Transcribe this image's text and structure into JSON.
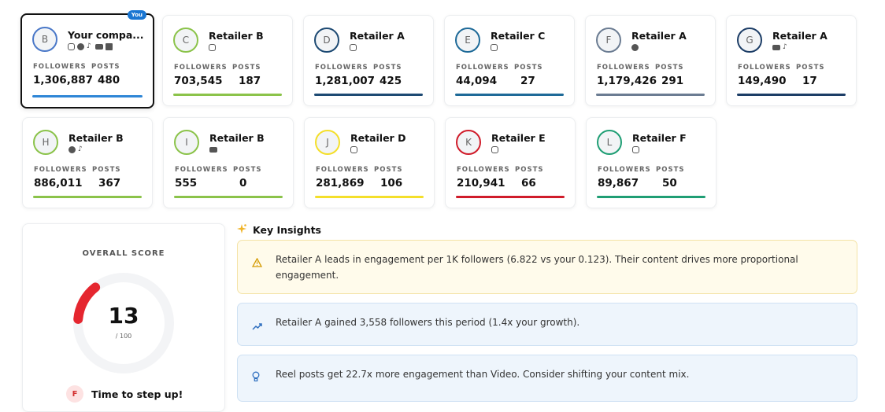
{
  "stats_labels": {
    "followers": "FOLLOWERS",
    "posts": "POSTS"
  },
  "you_badge": "You",
  "competitors": [
    {
      "initial": "B",
      "name": "Your compa...",
      "platforms": [
        "instagram",
        "facebook",
        "tiktok",
        "youtube",
        "linkedin"
      ],
      "followers": "1,306,887",
      "posts": "480",
      "color": "#2f86d6",
      "avatar_color": "#4a78c8",
      "is_you": true
    },
    {
      "initial": "C",
      "name": "Retailer B",
      "platforms": [
        "instagram"
      ],
      "followers": "703,545",
      "posts": "187",
      "color": "#8bc34a",
      "avatar_color": "#8bc34a"
    },
    {
      "initial": "D",
      "name": "Retailer A",
      "platforms": [
        "instagram"
      ],
      "followers": "1,281,007",
      "posts": "425",
      "color": "#1d4a73",
      "avatar_color": "#1d4a73"
    },
    {
      "initial": "E",
      "name": "Retailer C",
      "platforms": [
        "instagram"
      ],
      "followers": "44,094",
      "posts": "27",
      "color": "#1e6a98",
      "avatar_color": "#1e6a98"
    },
    {
      "initial": "F",
      "name": "Retailer A",
      "platforms": [
        "facebook"
      ],
      "followers": "1,179,426",
      "posts": "291",
      "color": "#6b7c92",
      "avatar_color": "#6b7c92"
    },
    {
      "initial": "G",
      "name": "Retailer A",
      "platforms": [
        "youtube",
        "tiktok"
      ],
      "followers": "149,490",
      "posts": "17",
      "color": "#1c3d66",
      "avatar_color": "#1c3d66"
    },
    {
      "initial": "H",
      "name": "Retailer B",
      "platforms": [
        "facebook",
        "tiktok"
      ],
      "followers": "886,011",
      "posts": "367",
      "color": "#8bc34a",
      "avatar_color": "#8bc34a"
    },
    {
      "initial": "I",
      "name": "Retailer B",
      "platforms": [
        "youtube"
      ],
      "followers": "555",
      "posts": "0",
      "color": "#8bc34a",
      "avatar_color": "#8bc34a"
    },
    {
      "initial": "J",
      "name": "Retailer D",
      "platforms": [
        "instagram"
      ],
      "followers": "281,869",
      "posts": "106",
      "color": "#f4df2a",
      "avatar_color": "#f4df2a"
    },
    {
      "initial": "K",
      "name": "Retailer E",
      "platforms": [
        "instagram"
      ],
      "followers": "210,941",
      "posts": "66",
      "color": "#d01c2a",
      "avatar_color": "#d01c2a"
    },
    {
      "initial": "L",
      "name": "Retailer F",
      "platforms": [
        "instagram"
      ],
      "followers": "89,867",
      "posts": "50",
      "color": "#1f9e74",
      "avatar_color": "#1f9e74"
    }
  ],
  "score": {
    "title": "OVERALL SCORE",
    "value": "13",
    "max": "/ 100",
    "fraction": 0.13,
    "color": "#e5262f",
    "grade": "F",
    "message": "Time to step up!"
  },
  "insights": {
    "title": "Key Insights",
    "items": [
      {
        "icon": "warning-icon",
        "text": "Retailer A leads in engagement per 1K followers (6.822 vs your 0.123). Their content drives more proportional engagement."
      },
      {
        "icon": "trending-up-icon",
        "text": "Retailer A gained 3,558 followers this period (1.4x your growth)."
      },
      {
        "icon": "lightbulb-icon",
        "text": "Reel posts get 22.7x more engagement than Video. Consider shifting your content mix."
      }
    ]
  }
}
